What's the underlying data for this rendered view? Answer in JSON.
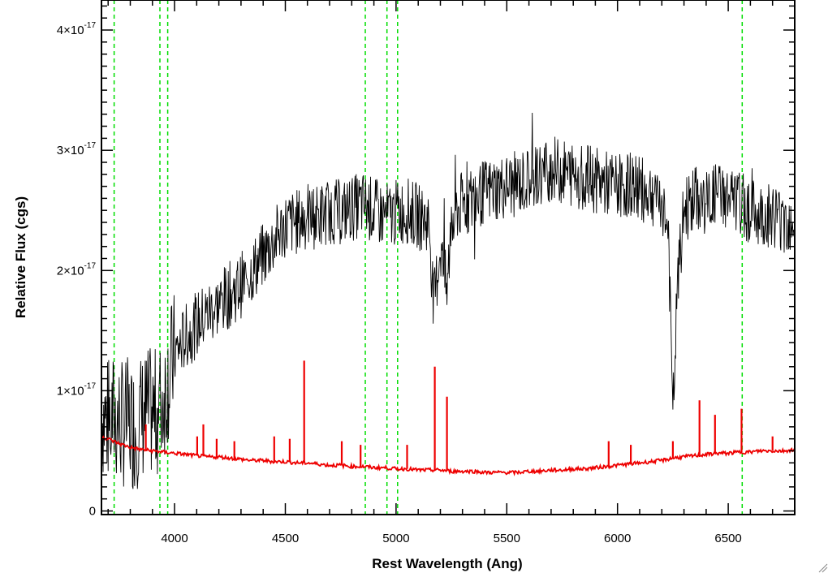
{
  "chart_data": {
    "type": "line",
    "xlabel": "Rest Wavelength (Ang)",
    "ylabel": "Relative Flux (cgs)",
    "xlim": [
      3670,
      6800
    ],
    "ylim": [
      -3e-19,
      4.25e-17
    ],
    "x_ticks": [
      4000,
      4500,
      5000,
      5500,
      6000,
      6500
    ],
    "x_tick_labels": [
      "4000",
      "4500",
      "5000",
      "5500",
      "6000",
      "6500"
    ],
    "y_ticks": [
      0,
      1e-17,
      2e-17,
      3e-17,
      4e-17
    ],
    "y_tick_labels": [
      {
        "base": "0",
        "exp": ""
      },
      {
        "base": "1×10",
        "exp": "-17"
      },
      {
        "base": "2×10",
        "exp": "-17"
      },
      {
        "base": "3×10",
        "exp": "-17"
      },
      {
        "base": "4×10",
        "exp": "-17"
      }
    ],
    "grid": false,
    "reference_lines": {
      "color": "#00dd00",
      "style": "dashed",
      "x": [
        3727,
        3934,
        3969,
        4861,
        4959,
        5007,
        6563
      ]
    },
    "series": [
      {
        "color": "#000000",
        "x": [
          3670,
          3700,
          3730,
          3760,
          3790,
          3820,
          3850,
          3880,
          3910,
          3940,
          3970,
          4000,
          4050,
          4100,
          4150,
          4200,
          4250,
          4300,
          4350,
          4400,
          4450,
          4500,
          4550,
          4600,
          4650,
          4700,
          4750,
          4800,
          4850,
          4900,
          4950,
          5000,
          5050,
          5100,
          5150,
          5170,
          5200,
          5230,
          5250,
          5300,
          5350,
          5400,
          5450,
          5500,
          5550,
          5600,
          5650,
          5700,
          5750,
          5800,
          5850,
          5900,
          5950,
          6000,
          6050,
          6100,
          6150,
          6200,
          6230,
          6250,
          6270,
          6300,
          6350,
          6400,
          6450,
          6500,
          6550,
          6600,
          6650,
          6700,
          6750,
          6800
        ],
        "y": [
          8e-18,
          7.5e-18,
          7.8e-18,
          7.2e-18,
          7.4e-18,
          7e-18,
          7.8e-18,
          8.2e-18,
          8e-18,
          8.8e-18,
          1.1e-17,
          1.3e-17,
          1.45e-17,
          1.55e-17,
          1.65e-17,
          1.72e-17,
          1.8e-17,
          1.88e-17,
          2e-17,
          2.12e-17,
          2.25e-17,
          2.38e-17,
          2.4e-17,
          2.45e-17,
          2.45e-17,
          2.5e-17,
          2.48e-17,
          2.52e-17,
          2.55e-17,
          2.5e-17,
          2.45e-17,
          2.48e-17,
          2.5e-17,
          2.45e-17,
          2.4e-17,
          1.7e-17,
          2.2e-17,
          1.8e-17,
          2.45e-17,
          2.55e-17,
          2.6e-17,
          2.65e-17,
          2.68e-17,
          2.7e-17,
          2.72e-17,
          2.75e-17,
          2.8e-17,
          2.85e-17,
          2.82e-17,
          2.8e-17,
          2.78e-17,
          2.75e-17,
          2.72e-17,
          2.7e-17,
          2.72e-17,
          2.68e-17,
          2.65e-17,
          2.6e-17,
          2.3e-17,
          7.5e-18,
          1.85e-17,
          2.5e-17,
          2.6e-17,
          2.55e-17,
          2.65e-17,
          2.6e-17,
          2.55e-17,
          2.5e-17,
          2.45e-17,
          2.48e-17,
          2.4e-17,
          2.45e-17
        ]
      },
      {
        "color": "#ee0000",
        "x": [
          3670,
          3700,
          3750,
          3800,
          3850,
          3900,
          3950,
          4000,
          4050,
          4100,
          4150,
          4200,
          4250,
          4300,
          4350,
          4400,
          4450,
          4500,
          4550,
          4600,
          4650,
          4700,
          4750,
          4800,
          4850,
          4900,
          4950,
          5000,
          5050,
          5100,
          5150,
          5200,
          5250,
          5300,
          5350,
          5400,
          5450,
          5500,
          5550,
          5600,
          5650,
          5700,
          5750,
          5800,
          5850,
          5900,
          5950,
          6000,
          6050,
          6100,
          6150,
          6200,
          6250,
          6300,
          6350,
          6400,
          6450,
          6500,
          6550,
          6600,
          6650,
          6700,
          6750,
          6800
        ],
        "y": [
          6.2e-18,
          6e-18,
          5.6e-18,
          5.3e-18,
          5.1e-18,
          5e-18,
          4.9e-18,
          4.8e-18,
          4.7e-18,
          4.6e-18,
          4.5e-18,
          4.5e-18,
          4.4e-18,
          4.3e-18,
          4.2e-18,
          4.2e-18,
          4.1e-18,
          4.1e-18,
          4e-18,
          4e-18,
          3.9e-18,
          3.8e-18,
          3.8e-18,
          3.7e-18,
          3.7e-18,
          3.6e-18,
          3.6e-18,
          3.5e-18,
          3.5e-18,
          3.4e-18,
          3.4e-18,
          3.4e-18,
          3.3e-18,
          3.3e-18,
          3.3e-18,
          3.2e-18,
          3.2e-18,
          3.2e-18,
          3.2e-18,
          3.3e-18,
          3.3e-18,
          3.4e-18,
          3.4e-18,
          3.5e-18,
          3.5e-18,
          3.6e-18,
          3.7e-18,
          3.8e-18,
          3.9e-18,
          4e-18,
          4.1e-18,
          4.2e-18,
          4.4e-18,
          4.5e-18,
          4.6e-18,
          4.7e-18,
          4.8e-18,
          4.8e-18,
          4.9e-18,
          4.9e-18,
          5e-18,
          5e-18,
          5e-18,
          5.1e-18
        ]
      }
    ],
    "emission_spikes": [
      {
        "x": 3870,
        "y": 7.2e-18
      },
      {
        "x": 4102,
        "y": 6.2e-18
      },
      {
        "x": 4130,
        "y": 7.2e-18
      },
      {
        "x": 4190,
        "y": 6e-18
      },
      {
        "x": 4270,
        "y": 5.8e-18
      },
      {
        "x": 4450,
        "y": 6.2e-18
      },
      {
        "x": 4520,
        "y": 6e-18
      },
      {
        "x": 4585,
        "y": 1.25e-17
      },
      {
        "x": 4755,
        "y": 5.8e-18
      },
      {
        "x": 4840,
        "y": 5.5e-18
      },
      {
        "x": 5050,
        "y": 5.5e-18
      },
      {
        "x": 5175,
        "y": 1.2e-17
      },
      {
        "x": 5230,
        "y": 9.5e-18
      },
      {
        "x": 5960,
        "y": 5.8e-18
      },
      {
        "x": 6060,
        "y": 5.5e-18
      },
      {
        "x": 6250,
        "y": 5.8e-18
      },
      {
        "x": 6370,
        "y": 9.2e-18
      },
      {
        "x": 6440,
        "y": 8e-18
      },
      {
        "x": 6560,
        "y": 8.5e-18
      },
      {
        "x": 6700,
        "y": 6.2e-18
      }
    ]
  }
}
